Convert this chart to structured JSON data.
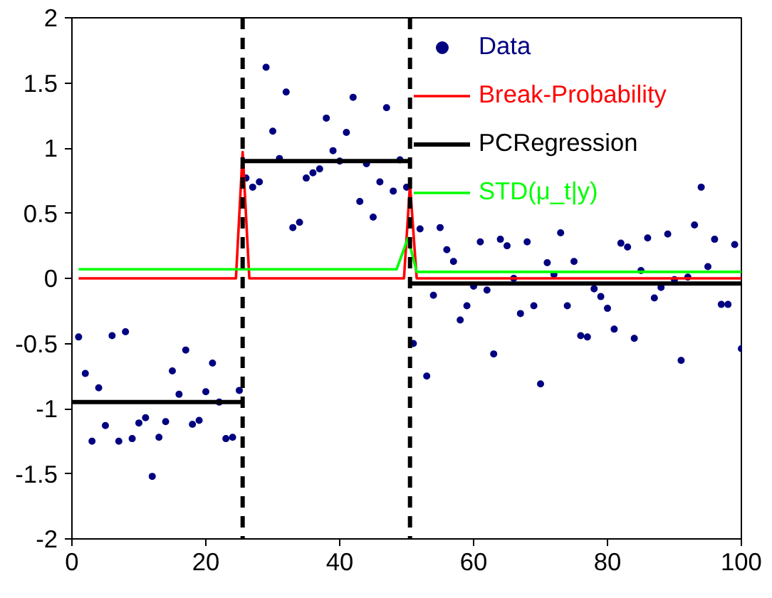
{
  "chart_data": {
    "type": "scatter",
    "xlim": [
      0,
      100
    ],
    "ylim": [
      -2,
      2
    ],
    "xticks": [
      0,
      20,
      40,
      60,
      80,
      100
    ],
    "yticks": [
      -2,
      -1.5,
      -1,
      -0.5,
      0,
      0.5,
      1,
      1.5,
      2
    ],
    "grid": false,
    "legend": "top right",
    "series": [
      {
        "name": "Data",
        "marker": "circle",
        "color": "#000080",
        "x": [
          1,
          2,
          3,
          4,
          5,
          6,
          7,
          8,
          9,
          10,
          11,
          12,
          13,
          14,
          15,
          16,
          17,
          18,
          19,
          20,
          21,
          22,
          23,
          24,
          25,
          26,
          27,
          28,
          29,
          30,
          31,
          32,
          33,
          34,
          35,
          36,
          37,
          38,
          39,
          40,
          41,
          42,
          43,
          44,
          45,
          46,
          47,
          48,
          49,
          50,
          51,
          52,
          53,
          54,
          55,
          56,
          57,
          58,
          59,
          60,
          61,
          62,
          63,
          64,
          65,
          66,
          67,
          68,
          69,
          70,
          71,
          72,
          73,
          74,
          75,
          76,
          77,
          78,
          79,
          80,
          81,
          82,
          83,
          84,
          85,
          86,
          87,
          88,
          89,
          90,
          91,
          92,
          93,
          94,
          95,
          96,
          97,
          98,
          99,
          100
        ],
        "values": [
          -0.45,
          -0.73,
          -1.25,
          -0.84,
          -1.13,
          -0.44,
          -1.25,
          -0.41,
          -1.23,
          -1.11,
          -1.07,
          -1.52,
          -1.22,
          -1.1,
          -0.71,
          -0.89,
          -0.55,
          -1.12,
          -1.09,
          -0.87,
          -0.65,
          -0.95,
          -1.23,
          -1.22,
          -0.86,
          0.77,
          0.7,
          0.74,
          1.62,
          1.13,
          0.92,
          1.43,
          0.39,
          0.43,
          0.77,
          0.81,
          0.84,
          1.23,
          0.98,
          0.9,
          1.12,
          1.39,
          0.59,
          0.88,
          0.47,
          0.74,
          1.31,
          0.67,
          0.91,
          0.7,
          -0.5,
          0.38,
          -0.75,
          -0.13,
          0.39,
          0.22,
          0.13,
          -0.32,
          -0.21,
          -0.06,
          0.28,
          -0.09,
          -0.58,
          0.3,
          0.25,
          0.0,
          -0.27,
          0.28,
          -0.21,
          -0.81,
          0.12,
          0.03,
          0.35,
          -0.21,
          0.13,
          -0.44,
          -0.45,
          -0.08,
          -0.14,
          -0.23,
          -0.39,
          0.27,
          0.24,
          -0.46,
          0.06,
          0.31,
          -0.15,
          -0.07,
          0.34,
          -0.01,
          -0.63,
          0.01,
          0.41,
          0.7,
          0.09,
          0.3,
          -0.2,
          -0.2,
          0.26,
          -0.54
        ]
      },
      {
        "name": "Break-Probability",
        "type": "line",
        "line_style": "solid",
        "color": "#ff0000",
        "x": [
          1,
          24.5,
          25.5,
          26.5,
          49.6,
          50.5,
          51.5,
          100
        ],
        "values": [
          0,
          0,
          0.97,
          0,
          0,
          0.72,
          0,
          0
        ]
      },
      {
        "name": "PCRegression",
        "type": "line",
        "line_style": "solid",
        "color": "#000000",
        "x": [
          0,
          25.5,
          25.5,
          50.5,
          50.5,
          100
        ],
        "values": [
          -0.95,
          -0.95,
          0.9,
          0.9,
          -0.04,
          -0.04
        ]
      },
      {
        "name": "STD(μ_t|y)",
        "type": "line",
        "line_style": "solid",
        "color": "#00ff00",
        "x": [
          1,
          48.5,
          50.2,
          51.5,
          100
        ],
        "values": [
          0.07,
          0.07,
          0.31,
          0.05,
          0.05
        ]
      }
    ],
    "ref_lines": [
      {
        "axis": "x",
        "value": 25.5,
        "color": "#000000",
        "line_style": "dashed"
      },
      {
        "axis": "x",
        "value": 50.5,
        "color": "#000000",
        "line_style": "dashed"
      }
    ]
  }
}
